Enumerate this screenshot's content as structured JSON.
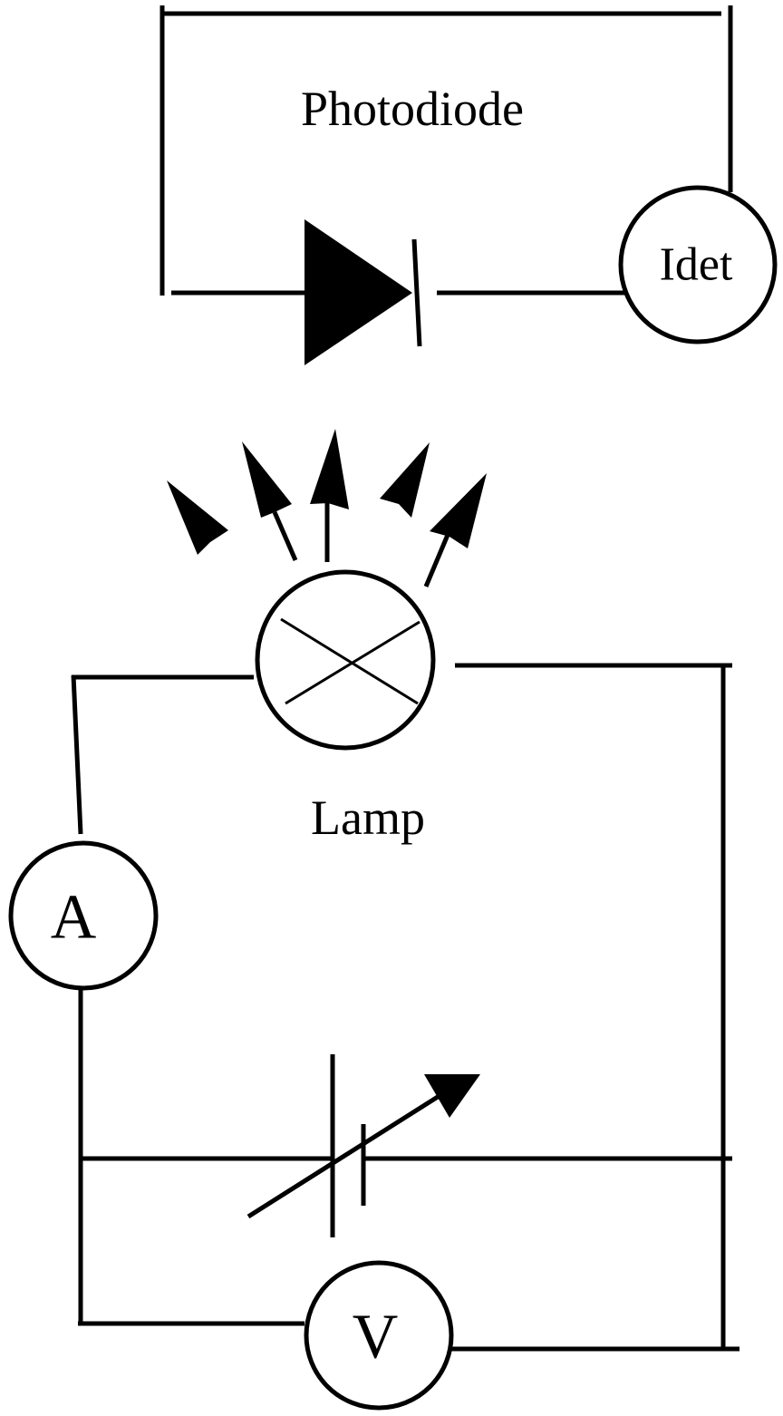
{
  "labels": {
    "photodiode": "Photodiode",
    "detector_meter": "Idet",
    "lamp": "Lamp",
    "ammeter": "A",
    "voltmeter": "V"
  }
}
